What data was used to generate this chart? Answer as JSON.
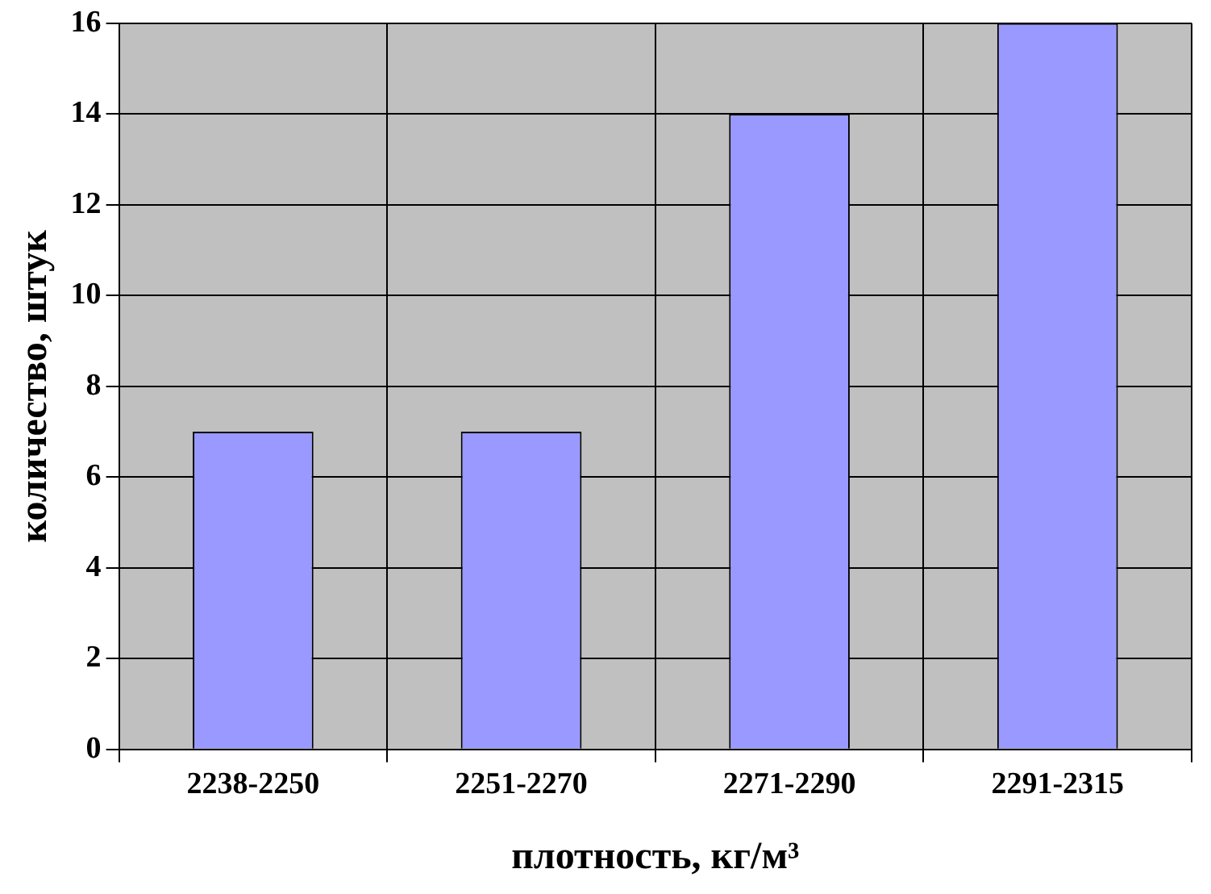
{
  "chart_data": {
    "type": "bar",
    "xlabel": "плотность, кг/м³",
    "ylabel": "количество, штук",
    "categories": [
      "2238-2250",
      "2251-2270",
      "2271-2290",
      "2291-2315"
    ],
    "values": [
      7,
      7,
      14,
      16
    ],
    "color": "#9999ff",
    "ylim": [
      0,
      16
    ],
    "yticks": [
      0,
      2,
      4,
      6,
      8,
      10,
      12,
      14,
      16
    ],
    "grid": true,
    "legend": false
  }
}
